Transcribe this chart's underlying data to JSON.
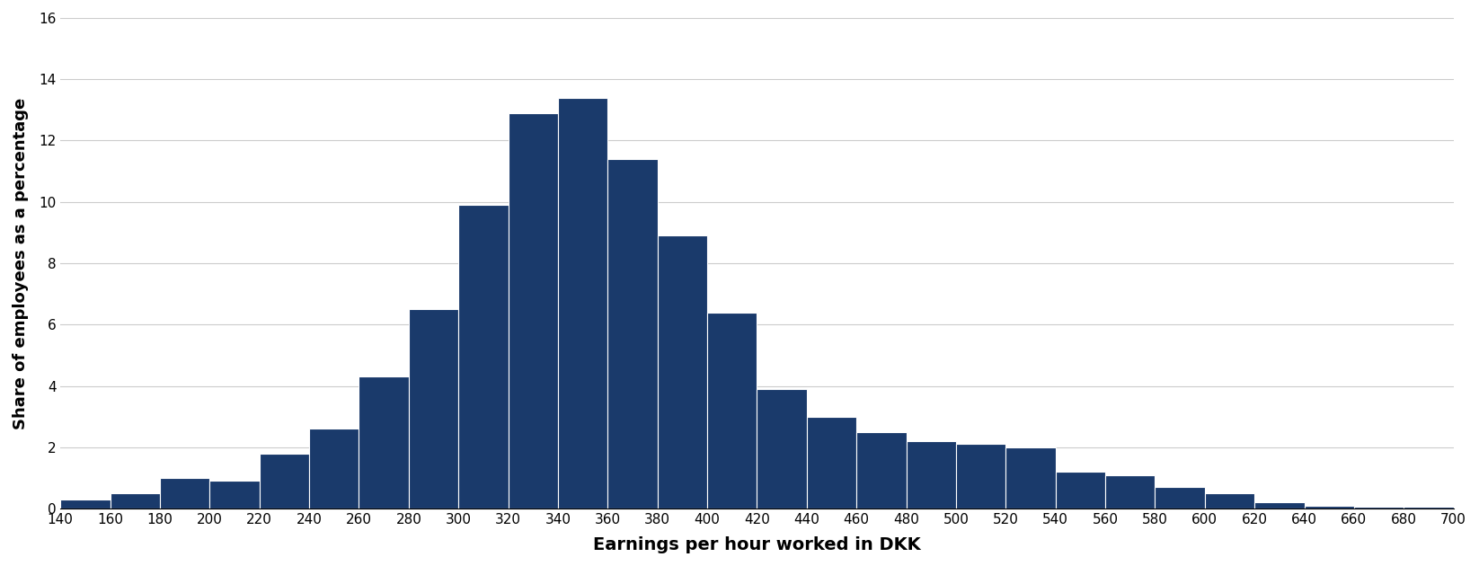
{
  "bar_color": "#1a3a6b",
  "edge_color": "#ffffff",
  "xlabel": "Earnings per hour worked in DKK",
  "ylabel": "Share of employees as a percentage",
  "xlabel_fontsize": 14,
  "ylabel_fontsize": 13,
  "tick_fontsize": 11,
  "ylim": [
    0,
    16
  ],
  "yticks": [
    0,
    2,
    4,
    6,
    8,
    10,
    12,
    14,
    16
  ],
  "background_color": "#ffffff",
  "grid_color": "#cccccc",
  "bin_centers": [
    150,
    170,
    190,
    210,
    230,
    250,
    270,
    290,
    310,
    330,
    350,
    370,
    390,
    410,
    430,
    450,
    470,
    490,
    510,
    530,
    550,
    570,
    590,
    610,
    630,
    650,
    670,
    690
  ],
  "bin_width": 20,
  "values": [
    0.3,
    0.5,
    1.0,
    0.9,
    1.8,
    2.6,
    4.3,
    6.5,
    9.9,
    12.9,
    13.4,
    11.4,
    8.9,
    6.4,
    3.9,
    3.0,
    2.5,
    2.2,
    2.1,
    2.0,
    1.2,
    1.1,
    0.7,
    0.5,
    0.2,
    0.1,
    0.05,
    0.05
  ],
  "xtick_labels": [
    "140",
    "160",
    "180",
    "200",
    "220",
    "240",
    "260",
    "280",
    "300",
    "320",
    "340",
    "360",
    "380",
    "400",
    "420",
    "440",
    "460",
    "480",
    "500",
    "520",
    "540",
    "560",
    "580",
    "600",
    "620",
    "640",
    "660",
    "680",
    "700"
  ]
}
